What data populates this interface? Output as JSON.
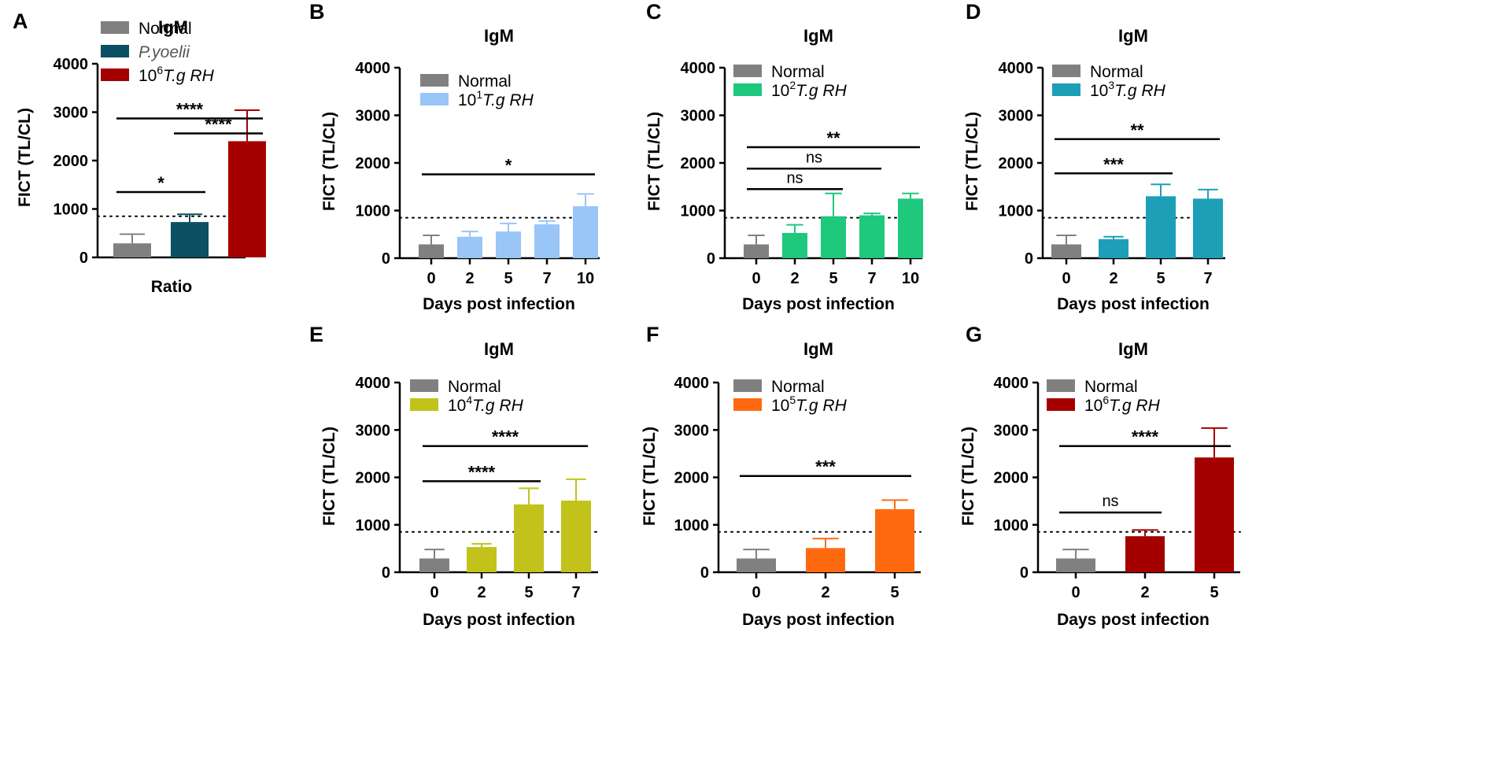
{
  "figure": {
    "panels": [
      "A",
      "B",
      "C",
      "D",
      "E",
      "F",
      "G"
    ]
  },
  "chart_data": [
    {
      "panel": "A",
      "type": "bar",
      "title": "IgM",
      "ylabel": "FICT (TL/CL)",
      "xlabel": "Ratio",
      "ylim": [
        0,
        4000
      ],
      "yticks": [
        "0",
        "1000",
        "2000",
        "3000",
        "4000"
      ],
      "categories": [
        "Normal",
        "P.yoelii",
        "10^6 T.g RH"
      ],
      "show_xticks": false,
      "values": [
        290,
        730,
        2400
      ],
      "errors": [
        190,
        160,
        640
      ],
      "colors": [
        "#808080",
        "#0d4f63",
        "#a50000"
      ],
      "cutoff": 850,
      "legend": [
        {
          "sup": "",
          "text": "Normal",
          "italic": false
        },
        {
          "sup": "",
          "text": "P.yoelii",
          "italic": true,
          "color": "#555555"
        },
        {
          "prefix": "10",
          "sup": "6",
          "text": "T.g RH",
          "italic": true
        }
      ],
      "significance": [
        {
          "from": 0,
          "to": 1,
          "label": "*",
          "y": 1350
        },
        {
          "from": 1,
          "to": 2,
          "label": "****",
          "y": 2560
        },
        {
          "from": 0,
          "to": 2,
          "label": "****",
          "y": 2870
        }
      ]
    },
    {
      "panel": "B",
      "type": "bar",
      "title": "IgM",
      "ylabel": "FICT (TL/CL)",
      "xlabel": "Days post infection",
      "ylim": [
        0,
        4000
      ],
      "yticks": [
        "0",
        "1000",
        "2000",
        "3000",
        "4000"
      ],
      "categories": [
        "0",
        "2",
        "5",
        "7",
        "10"
      ],
      "show_xticks": true,
      "values": [
        290,
        450,
        560,
        710,
        1090
      ],
      "errors": [
        190,
        110,
        170,
        70,
        260
      ],
      "colors": [
        "#808080",
        "#99c5f7",
        "#99c5f7",
        "#99c5f7",
        "#99c5f7"
      ],
      "cutoff": 850,
      "legend": [
        {
          "sup": "",
          "text": "Normal",
          "italic": false
        },
        {
          "prefix": "10",
          "sup": "1",
          "text": "T.g RH",
          "italic": true
        }
      ],
      "significance": [
        {
          "from": 0,
          "to": 4,
          "label": "*",
          "y": 1760
        }
      ]
    },
    {
      "panel": "C",
      "type": "bar",
      "title": "IgM",
      "ylabel": "FICT (TL/CL)",
      "xlabel": "Days post infection",
      "ylim": [
        0,
        4000
      ],
      "yticks": [
        "0",
        "1000",
        "2000",
        "3000",
        "4000"
      ],
      "categories": [
        "0",
        "2",
        "5",
        "7",
        "10"
      ],
      "show_xticks": true,
      "values": [
        290,
        530,
        880,
        900,
        1250
      ],
      "errors": [
        190,
        170,
        480,
        40,
        110
      ],
      "colors": [
        "#808080",
        "#1ec87c",
        "#1ec87c",
        "#1ec87c",
        "#1ec87c"
      ],
      "cutoff": 850,
      "legend": [
        {
          "sup": "",
          "text": "Normal",
          "italic": false
        },
        {
          "prefix": "10",
          "sup": "2",
          "text": "T.g RH",
          "italic": true
        }
      ],
      "significance": [
        {
          "from": 0,
          "to": 2,
          "label": "ns",
          "y": 1450
        },
        {
          "from": 0,
          "to": 3,
          "label": "ns",
          "y": 1880
        },
        {
          "from": 0,
          "to": 4,
          "label": "**",
          "y": 2330
        }
      ]
    },
    {
      "panel": "D",
      "type": "bar",
      "title": "IgM",
      "ylabel": "FICT (TL/CL)",
      "xlabel": "Days post infection",
      "ylim": [
        0,
        4000
      ],
      "yticks": [
        "0",
        "1000",
        "2000",
        "3000",
        "4000"
      ],
      "categories": [
        "0",
        "2",
        "5",
        "7"
      ],
      "show_xticks": true,
      "values": [
        290,
        400,
        1300,
        1250
      ],
      "errors": [
        190,
        50,
        250,
        190
      ],
      "colors": [
        "#808080",
        "#1d9fb8",
        "#1d9fb8",
        "#1d9fb8"
      ],
      "cutoff": 850,
      "legend": [
        {
          "sup": "",
          "text": "Normal",
          "italic": false
        },
        {
          "prefix": "10",
          "sup": "3",
          "text": "T.g RH",
          "italic": true
        }
      ],
      "significance": [
        {
          "from": 0,
          "to": 2,
          "label": "***",
          "y": 1780
        },
        {
          "from": 0,
          "to": 3,
          "label": "**",
          "y": 2500
        }
      ]
    },
    {
      "panel": "E",
      "type": "bar",
      "title": "IgM",
      "ylabel": "FICT (TL/CL)",
      "xlabel": "Days post infection",
      "ylim": [
        0,
        4000
      ],
      "yticks": [
        "0",
        "1000",
        "2000",
        "3000",
        "4000"
      ],
      "categories": [
        "0",
        "2",
        "5",
        "7"
      ],
      "show_xticks": true,
      "values": [
        290,
        530,
        1430,
        1510
      ],
      "errors": [
        190,
        70,
        340,
        450
      ],
      "colors": [
        "#808080",
        "#c2c21b",
        "#c2c21b",
        "#c2c21b"
      ],
      "cutoff": 850,
      "legend": [
        {
          "sup": "",
          "text": "Normal",
          "italic": false
        },
        {
          "prefix": "10",
          "sup": "4",
          "text": "T.g RH",
          "italic": true
        }
      ],
      "significance": [
        {
          "from": 0,
          "to": 2,
          "label": "****",
          "y": 1920
        },
        {
          "from": 0,
          "to": 3,
          "label": "****",
          "y": 2660
        }
      ]
    },
    {
      "panel": "F",
      "type": "bar",
      "title": "IgM",
      "ylabel": "FICT (TL/CL)",
      "xlabel": "Days post infection",
      "ylim": [
        0,
        4000
      ],
      "yticks": [
        "0",
        "1000",
        "2000",
        "3000",
        "4000"
      ],
      "categories": [
        "0",
        "2",
        "5"
      ],
      "show_xticks": true,
      "values": [
        290,
        510,
        1330
      ],
      "errors": [
        190,
        200,
        190
      ],
      "colors": [
        "#808080",
        "#ff6a10",
        "#ff6a10"
      ],
      "cutoff": 850,
      "legend": [
        {
          "sup": "",
          "text": "Normal",
          "italic": false
        },
        {
          "prefix": "10",
          "sup": "5",
          "text": "T.g RH",
          "italic": true
        }
      ],
      "significance": [
        {
          "from": 0,
          "to": 2,
          "label": "***",
          "y": 2030
        }
      ]
    },
    {
      "panel": "G",
      "type": "bar",
      "title": "IgM",
      "ylabel": "FICT (TL/CL)",
      "xlabel": "Days post infection",
      "ylim": [
        0,
        4000
      ],
      "yticks": [
        "0",
        "1000",
        "2000",
        "3000",
        "4000"
      ],
      "categories": [
        "0",
        "2",
        "5"
      ],
      "show_xticks": true,
      "values": [
        290,
        760,
        2420
      ],
      "errors": [
        190,
        130,
        620
      ],
      "colors": [
        "#808080",
        "#a50000",
        "#a50000"
      ],
      "cutoff": 850,
      "legend": [
        {
          "sup": "",
          "text": "Normal",
          "italic": false
        },
        {
          "prefix": "10",
          "sup": "6",
          "text": "T.g RH",
          "italic": true
        }
      ],
      "significance": [
        {
          "from": 0,
          "to": 1,
          "label": "ns",
          "y": 1260
        },
        {
          "from": 0,
          "to": 2,
          "label": "****",
          "y": 2660
        }
      ]
    }
  ]
}
